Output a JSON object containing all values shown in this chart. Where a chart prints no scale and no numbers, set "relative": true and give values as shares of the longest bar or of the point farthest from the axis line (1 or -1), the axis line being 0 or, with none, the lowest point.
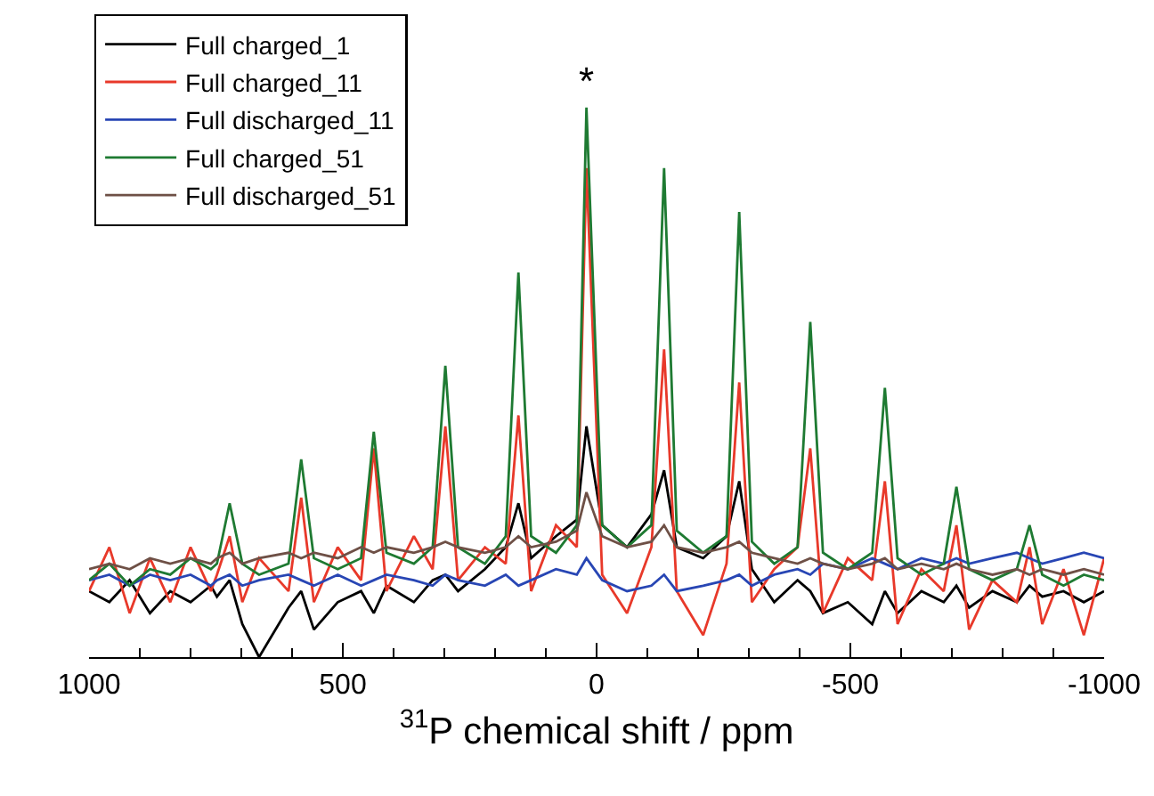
{
  "chart_data": {
    "type": "line",
    "xlabel": "$^{31}$P chemical shift / ppm",
    "relative": true,
    "legend": "top left",
    "grid": false,
    "marker": "none",
    "line_style": "solid",
    "xlim": [
      1000,
      -1000
    ],
    "xticks": [
      1000,
      500,
      0,
      -500,
      -1000
    ],
    "x": [
      1000,
      960,
      920,
      880,
      840,
      800,
      760,
      748,
      723,
      698,
      665,
      607,
      582,
      557,
      510,
      464,
      439,
      414,
      360,
      323,
      298,
      273,
      220,
      179,
      154,
      129,
      80,
      39,
      20,
      -11,
      -60,
      -108,
      -133,
      -158,
      -210,
      -256,
      -281,
      -306,
      -350,
      -396,
      -421,
      -446,
      -495,
      -543,
      -568,
      -593,
      -640,
      -684,
      -709,
      -734,
      -780,
      -828,
      -853,
      -878,
      -920,
      -960,
      -1000
    ],
    "series": [
      {
        "name": "Full charged_1",
        "color": "#000000",
        "values": [
          0.12,
          0.1,
          0.14,
          0.08,
          0.12,
          0.1,
          0.13,
          0.11,
          0.14,
          0.06,
          0.0,
          0.09,
          0.12,
          0.05,
          0.1,
          0.12,
          0.08,
          0.13,
          0.1,
          0.14,
          0.15,
          0.12,
          0.16,
          0.2,
          0.28,
          0.18,
          0.22,
          0.25,
          0.42,
          0.24,
          0.2,
          0.26,
          0.34,
          0.2,
          0.18,
          0.22,
          0.32,
          0.16,
          0.1,
          0.14,
          0.12,
          0.08,
          0.1,
          0.06,
          0.12,
          0.08,
          0.12,
          0.1,
          0.13,
          0.09,
          0.12,
          0.1,
          0.13,
          0.11,
          0.12,
          0.1,
          0.12
        ]
      },
      {
        "name": "Full charged_11",
        "color": "#e8392a",
        "values": [
          0.12,
          0.2,
          0.08,
          0.18,
          0.1,
          0.2,
          0.12,
          0.15,
          0.22,
          0.1,
          0.18,
          0.12,
          0.29,
          0.1,
          0.2,
          0.14,
          0.38,
          0.12,
          0.22,
          0.16,
          0.42,
          0.14,
          0.2,
          0.17,
          0.44,
          0.12,
          0.24,
          0.2,
          0.89,
          0.15,
          0.08,
          0.2,
          0.56,
          0.12,
          0.04,
          0.17,
          0.5,
          0.1,
          0.16,
          0.2,
          0.38,
          0.08,
          0.18,
          0.14,
          0.32,
          0.06,
          0.16,
          0.12,
          0.24,
          0.05,
          0.14,
          0.1,
          0.2,
          0.06,
          0.16,
          0.04,
          0.18
        ]
      },
      {
        "name": "Full discharged_11",
        "color": "#2846b4",
        "values": [
          0.14,
          0.15,
          0.13,
          0.15,
          0.14,
          0.15,
          0.13,
          0.14,
          0.15,
          0.13,
          0.14,
          0.15,
          0.14,
          0.13,
          0.15,
          0.13,
          0.14,
          0.15,
          0.14,
          0.13,
          0.15,
          0.14,
          0.13,
          0.15,
          0.13,
          0.14,
          0.16,
          0.15,
          0.18,
          0.14,
          0.12,
          0.13,
          0.15,
          0.12,
          0.13,
          0.14,
          0.15,
          0.13,
          0.15,
          0.16,
          0.15,
          0.17,
          0.16,
          0.18,
          0.17,
          0.16,
          0.18,
          0.17,
          0.18,
          0.17,
          0.18,
          0.19,
          0.18,
          0.17,
          0.18,
          0.19,
          0.18
        ]
      },
      {
        "name": "Full charged_51",
        "color": "#1e7a32",
        "values": [
          0.14,
          0.17,
          0.13,
          0.16,
          0.15,
          0.18,
          0.16,
          0.17,
          0.28,
          0.17,
          0.15,
          0.17,
          0.36,
          0.18,
          0.16,
          0.18,
          0.41,
          0.19,
          0.17,
          0.2,
          0.53,
          0.2,
          0.17,
          0.22,
          0.7,
          0.22,
          0.19,
          0.24,
          1.0,
          0.24,
          0.2,
          0.24,
          0.89,
          0.23,
          0.19,
          0.22,
          0.81,
          0.21,
          0.17,
          0.2,
          0.61,
          0.19,
          0.16,
          0.19,
          0.49,
          0.18,
          0.15,
          0.17,
          0.31,
          0.16,
          0.14,
          0.16,
          0.24,
          0.15,
          0.13,
          0.15,
          0.14
        ]
      },
      {
        "name": "Full discharged_51",
        "color": "#6e5046",
        "values": [
          0.16,
          0.17,
          0.16,
          0.18,
          0.17,
          0.18,
          0.17,
          0.18,
          0.19,
          0.17,
          0.18,
          0.19,
          0.18,
          0.19,
          0.18,
          0.2,
          0.19,
          0.2,
          0.19,
          0.2,
          0.21,
          0.2,
          0.19,
          0.2,
          0.22,
          0.2,
          0.21,
          0.23,
          0.3,
          0.22,
          0.2,
          0.21,
          0.24,
          0.2,
          0.19,
          0.2,
          0.21,
          0.19,
          0.18,
          0.17,
          0.18,
          0.17,
          0.16,
          0.17,
          0.18,
          0.16,
          0.17,
          0.16,
          0.17,
          0.16,
          0.15,
          0.16,
          0.15,
          0.16,
          0.15,
          0.16,
          0.15
        ]
      }
    ],
    "annotations": [
      "*"
    ]
  }
}
